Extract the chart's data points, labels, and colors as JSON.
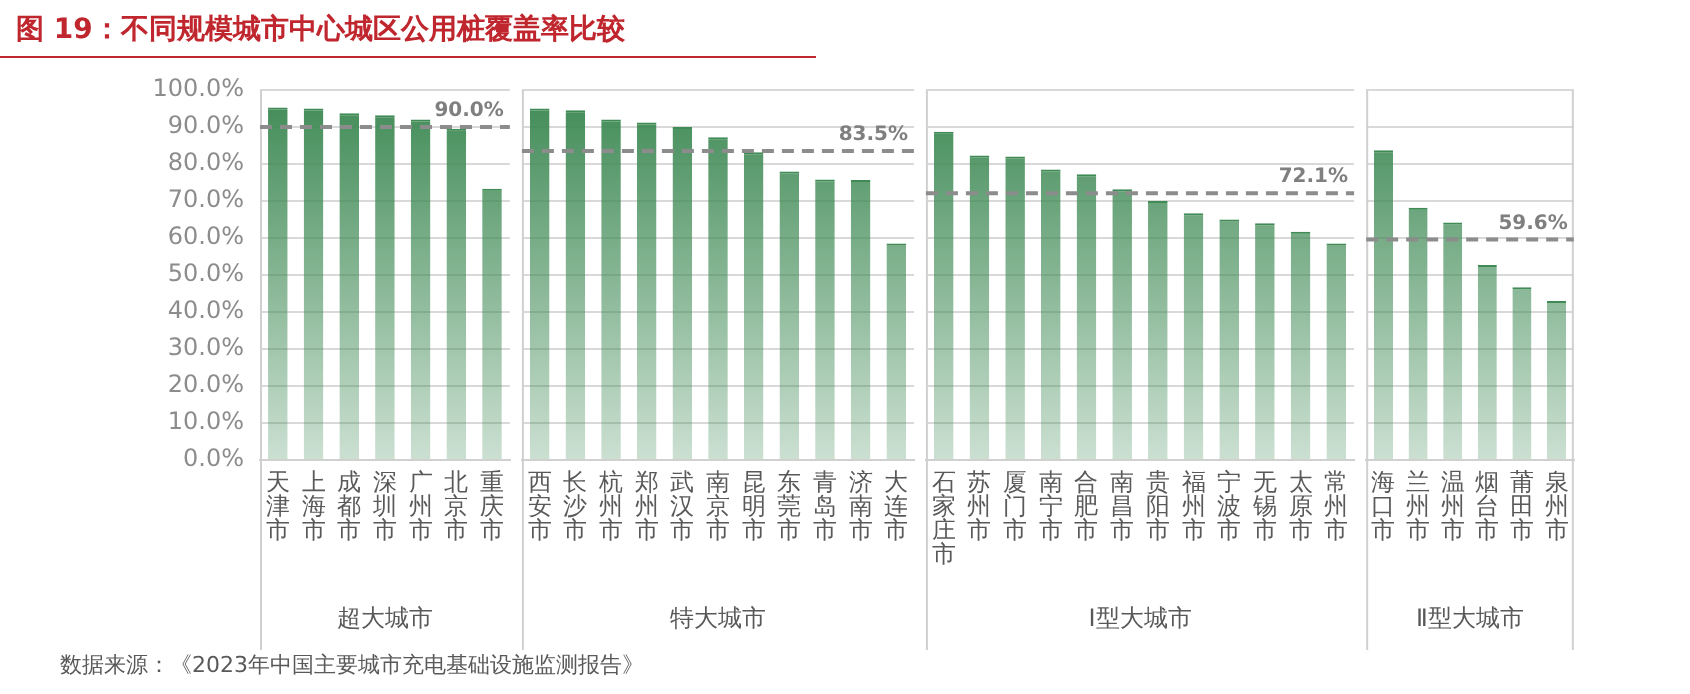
{
  "chart_data": [
    {
      "type": "bar",
      "title": "图 19：不同规模城市中心城区公用桩覆盖率比较",
      "xlabel": "超大城市",
      "categories": [
        "天津市",
        "上海市",
        "成都市",
        "深圳市",
        "广州市",
        "北京市",
        "重庆市"
      ],
      "values": [
        95.3,
        95.0,
        93.7,
        93.2,
        92.0,
        89.5,
        73.3
      ],
      "color": "#3f8a55",
      "ylim": [
        0,
        100
      ],
      "yticks": [
        {
          "value": 0,
          "label": "0.0%"
        },
        {
          "value": 10,
          "label": "10.0%"
        },
        {
          "value": 20,
          "label": "20.0%"
        },
        {
          "value": 30,
          "label": "30.0%"
        },
        {
          "value": 40,
          "label": "40.0%"
        },
        {
          "value": 50,
          "label": "50.0%"
        },
        {
          "value": 60,
          "label": "60.0%"
        },
        {
          "value": 70,
          "label": "70.0%"
        },
        {
          "value": 80,
          "label": "80.0%"
        },
        {
          "value": 90,
          "label": "90.0%"
        },
        {
          "value": 100,
          "label": "100.0%"
        }
      ],
      "grid": "y",
      "ref_lines": [
        {
          "axis": "y",
          "value": 90.0,
          "label": "90.0%",
          "color": "#8c8c8c",
          "line_style": "dashed"
        }
      ]
    },
    {
      "type": "bar",
      "xlabel": "特大城市",
      "categories": [
        "西安市",
        "长沙市",
        "杭州市",
        "郑州市",
        "武汉市",
        "南京市",
        "昆明市",
        "东莞市",
        "青岛市",
        "济南市",
        "大连市"
      ],
      "values": [
        95.0,
        94.5,
        92.0,
        91.2,
        90.0,
        87.2,
        83.2,
        78.0,
        75.8,
        75.7,
        58.5
      ],
      "color": "#3f8a55",
      "ylim": [
        0,
        100
      ],
      "yticks": [
        {
          "value": 0,
          "label": null
        },
        {
          "value": 10,
          "label": null
        },
        {
          "value": 20,
          "label": null
        },
        {
          "value": 30,
          "label": null
        },
        {
          "value": 40,
          "label": null
        },
        {
          "value": 50,
          "label": null
        },
        {
          "value": 60,
          "label": null
        },
        {
          "value": 70,
          "label": null
        },
        {
          "value": 80,
          "label": null
        },
        {
          "value": 90,
          "label": null
        },
        {
          "value": 100,
          "label": null
        }
      ],
      "grid": "y",
      "tick_labels": "x",
      "ref_lines": [
        {
          "axis": "y",
          "value": 83.5,
          "label": "83.5%",
          "color": "#8c8c8c",
          "line_style": "dashed"
        }
      ]
    },
    {
      "type": "bar",
      "xlabel": "I型大城市",
      "categories": [
        "石家庄市",
        "苏州市",
        "厦门市",
        "南宁市",
        "合肥市",
        "南昌市",
        "贵阳市",
        "福州市",
        "宁波市",
        "无锡市",
        "太原市",
        "常州市"
      ],
      "values": [
        88.7,
        82.3,
        82.0,
        78.5,
        77.2,
        73.2,
        70.0,
        66.7,
        65.0,
        64.0,
        61.7,
        58.5
      ],
      "color": "#3f8a55",
      "ylim": [
        0,
        100
      ],
      "yticks": [
        {
          "value": 0,
          "label": null
        },
        {
          "value": 10,
          "label": null
        },
        {
          "value": 20,
          "label": null
        },
        {
          "value": 30,
          "label": null
        },
        {
          "value": 40,
          "label": null
        },
        {
          "value": 50,
          "label": null
        },
        {
          "value": 60,
          "label": null
        },
        {
          "value": 70,
          "label": null
        },
        {
          "value": 80,
          "label": null
        },
        {
          "value": 90,
          "label": null
        },
        {
          "value": 100,
          "label": null
        }
      ],
      "grid": "y",
      "tick_labels": "x",
      "ref_lines": [
        {
          "axis": "y",
          "value": 72.1,
          "label": "72.1%",
          "color": "#8c8c8c",
          "line_style": "dashed"
        }
      ]
    },
    {
      "type": "bar",
      "xlabel": "Ⅱ型大城市",
      "categories": [
        "海口市",
        "兰州市",
        "温州市",
        "烟台市",
        "莆田市",
        "泉州市"
      ],
      "values": [
        83.7,
        68.2,
        64.2,
        52.7,
        46.7,
        43.0
      ],
      "color": "#3f8a55",
      "ylim": [
        0,
        100
      ],
      "yticks": [
        {
          "value": 0,
          "label": null
        },
        {
          "value": 10,
          "label": null
        },
        {
          "value": 20,
          "label": null
        },
        {
          "value": 30,
          "label": null
        },
        {
          "value": 40,
          "label": null
        },
        {
          "value": 50,
          "label": null
        },
        {
          "value": 60,
          "label": null
        },
        {
          "value": 70,
          "label": null
        },
        {
          "value": 80,
          "label": null
        },
        {
          "value": 90,
          "label": null
        },
        {
          "value": 100,
          "label": null
        }
      ],
      "grid": "y",
      "tick_labels": "x",
      "ref_lines": [
        {
          "axis": "y",
          "value": 59.6,
          "label": "59.6%",
          "color": "#8c8c8c",
          "line_style": "dashed"
        }
      ],
      "annotations": [
        "数据来源：《2023年中国主要城市充电基础设施监测报告》"
      ]
    }
  ]
}
